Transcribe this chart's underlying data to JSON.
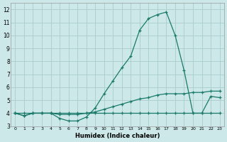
{
  "background_color": "#cce8e8",
  "grid_color": "#aacccc",
  "line_color": "#1a7a6a",
  "x_label": "Humidex (Indice chaleur)",
  "ylim": [
    3,
    12.5
  ],
  "xlim": [
    -0.5,
    23.5
  ],
  "y_ticks": [
    3,
    4,
    5,
    6,
    7,
    8,
    9,
    10,
    11,
    12
  ],
  "x_ticks": [
    0,
    1,
    2,
    3,
    4,
    5,
    6,
    7,
    8,
    9,
    10,
    11,
    12,
    13,
    14,
    15,
    16,
    17,
    18,
    19,
    20,
    21,
    22,
    23
  ],
  "x_tick_labels": [
    "0",
    "1",
    "2",
    "3",
    "4",
    "5",
    "6",
    "7",
    "8",
    "9",
    "10",
    "11",
    "12",
    "13",
    "14",
    "15",
    "16",
    "17",
    "18",
    "19",
    "20",
    "21",
    "22",
    "23"
  ],
  "series1_x": [
    0,
    1,
    2,
    3,
    4,
    5,
    6,
    7,
    8,
    9,
    10,
    11,
    12,
    13,
    14,
    15,
    16,
    17,
    18,
    19,
    20,
    21,
    22,
    23
  ],
  "series1_y": [
    4.0,
    3.8,
    4.0,
    4.0,
    4.0,
    3.6,
    3.4,
    3.4,
    3.7,
    4.4,
    5.5,
    6.5,
    7.5,
    8.4,
    10.4,
    11.3,
    11.6,
    11.8,
    10.0,
    7.3,
    4.0,
    4.0,
    5.3,
    5.2
  ],
  "series2_x": [
    0,
    1,
    2,
    3,
    4,
    5,
    6,
    7,
    8,
    9,
    10,
    11,
    12,
    13,
    14,
    15,
    16,
    17,
    18,
    19,
    20,
    21,
    22,
    23
  ],
  "series2_y": [
    4.0,
    3.8,
    4.0,
    4.0,
    4.0,
    3.9,
    3.9,
    3.9,
    4.0,
    4.1,
    4.3,
    4.5,
    4.7,
    4.9,
    5.1,
    5.2,
    5.4,
    5.5,
    5.5,
    5.5,
    5.6,
    5.6,
    5.7,
    5.7
  ],
  "series3_x": [
    0,
    1,
    2,
    3,
    4,
    5,
    6,
    7,
    8,
    9,
    10,
    11,
    12,
    13,
    14,
    15,
    16,
    17,
    18,
    19,
    20,
    21,
    22,
    23
  ],
  "series3_y": [
    4.0,
    4.0,
    4.0,
    4.0,
    4.0,
    4.0,
    4.0,
    4.0,
    4.0,
    4.0,
    4.0,
    4.0,
    4.0,
    4.0,
    4.0,
    4.0,
    4.0,
    4.0,
    4.0,
    4.0,
    4.0,
    4.0,
    4.0,
    4.0
  ]
}
